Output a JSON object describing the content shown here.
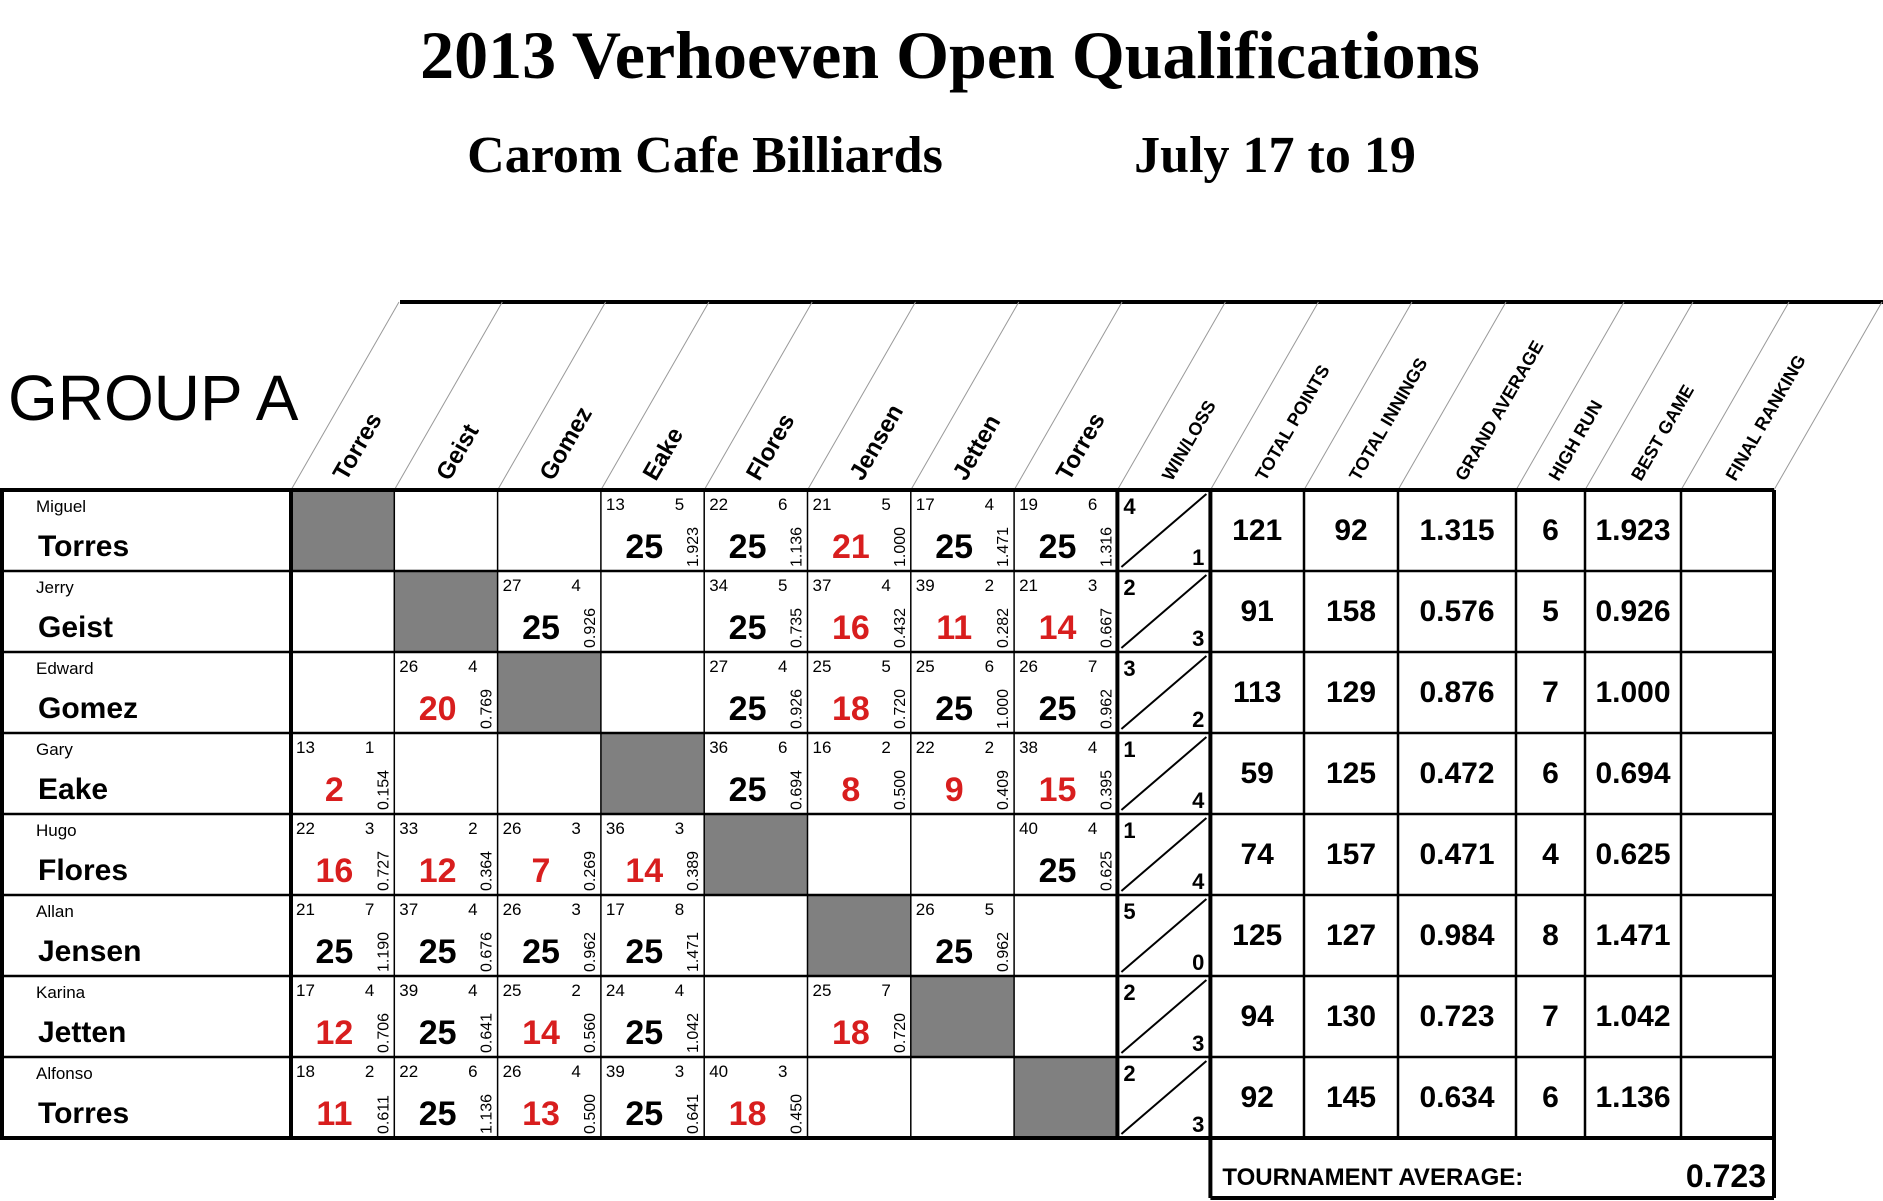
{
  "header": {
    "title": "2013 Verhoeven Open Qualifications",
    "venue": "Carom Cafe Billiards",
    "dates": "July 17 to 19"
  },
  "group": "GROUP A",
  "columns": {
    "opponents": [
      "Torres",
      "Geist",
      "Gomez",
      "Eake",
      "Flores",
      "Jensen",
      "Jetten",
      "Torres"
    ],
    "stats": [
      "WIN/LOSS",
      "TOTAL POINTS",
      "TOTAL INNINGS",
      "GRAND AVERAGE",
      "HIGH RUN",
      "BEST GAME",
      "FINAL RANKING"
    ]
  },
  "rows": [
    {
      "first": "Miguel",
      "last": "Torres",
      "cells": [
        null,
        null,
        null,
        {
          "innings": 13,
          "high_run": 5,
          "points": 25,
          "average": "1.923"
        },
        {
          "innings": 22,
          "high_run": 6,
          "points": 25,
          "average": "1.136"
        },
        {
          "innings": 21,
          "high_run": 5,
          "points": 21,
          "average": "1.000"
        },
        {
          "innings": 17,
          "high_run": 4,
          "points": 25,
          "average": "1.471"
        },
        {
          "innings": 19,
          "high_run": 6,
          "points": 25,
          "average": "1.316"
        }
      ],
      "win": 4,
      "loss": 1,
      "total_points": 121,
      "total_innings": 92,
      "grand_average": "1.315",
      "high_run": 6,
      "best_game": "1.923"
    },
    {
      "first": "Jerry",
      "last": "Geist",
      "cells": [
        null,
        null,
        {
          "innings": 27,
          "high_run": 4,
          "points": 25,
          "average": "0.926"
        },
        null,
        {
          "innings": 34,
          "high_run": 5,
          "points": 25,
          "average": "0.735"
        },
        {
          "innings": 37,
          "high_run": 4,
          "points": 16,
          "average": "0.432"
        },
        {
          "innings": 39,
          "high_run": 2,
          "points": 11,
          "average": "0.282"
        },
        {
          "innings": 21,
          "high_run": 3,
          "points": 14,
          "average": "0.667"
        }
      ],
      "win": 2,
      "loss": 3,
      "total_points": 91,
      "total_innings": 158,
      "grand_average": "0.576",
      "high_run": 5,
      "best_game": "0.926"
    },
    {
      "first": "Edward",
      "last": "Gomez",
      "cells": [
        null,
        {
          "innings": 26,
          "high_run": 4,
          "points": 20,
          "average": "0.769"
        },
        null,
        null,
        {
          "innings": 27,
          "high_run": 4,
          "points": 25,
          "average": "0.926"
        },
        {
          "innings": 25,
          "high_run": 5,
          "points": 18,
          "average": "0.720"
        },
        {
          "innings": 25,
          "high_run": 6,
          "points": 25,
          "average": "1.000"
        },
        {
          "innings": 26,
          "high_run": 7,
          "points": 25,
          "average": "0.962"
        }
      ],
      "win": 3,
      "loss": 2,
      "total_points": 113,
      "total_innings": 129,
      "grand_average": "0.876",
      "high_run": 7,
      "best_game": "1.000"
    },
    {
      "first": "Gary",
      "last": "Eake",
      "cells": [
        {
          "innings": 13,
          "high_run": 1,
          "points": 2,
          "average": "0.154"
        },
        null,
        null,
        null,
        {
          "innings": 36,
          "high_run": 6,
          "points": 25,
          "average": "0.694"
        },
        {
          "innings": 16,
          "high_run": 2,
          "points": 8,
          "average": "0.500"
        },
        {
          "innings": 22,
          "high_run": 2,
          "points": 9,
          "average": "0.409"
        },
        {
          "innings": 38,
          "high_run": 4,
          "points": 15,
          "average": "0.395"
        }
      ],
      "win": 1,
      "loss": 4,
      "total_points": 59,
      "total_innings": 125,
      "grand_average": "0.472",
      "high_run": 6,
      "best_game": "0.694"
    },
    {
      "first": "Hugo",
      "last": "Flores",
      "cells": [
        {
          "innings": 22,
          "high_run": 3,
          "points": 16,
          "average": "0.727"
        },
        {
          "innings": 33,
          "high_run": 2,
          "points": 12,
          "average": "0.364"
        },
        {
          "innings": 26,
          "high_run": 3,
          "points": 7,
          "average": "0.269"
        },
        {
          "innings": 36,
          "high_run": 3,
          "points": 14,
          "average": "0.389"
        },
        null,
        null,
        null,
        {
          "innings": 40,
          "high_run": 4,
          "points": 25,
          "average": "0.625"
        }
      ],
      "win": 1,
      "loss": 4,
      "total_points": 74,
      "total_innings": 157,
      "grand_average": "0.471",
      "high_run": 4,
      "best_game": "0.625"
    },
    {
      "first": "Allan",
      "last": "Jensen",
      "cells": [
        {
          "innings": 21,
          "high_run": 7,
          "points": 25,
          "average": "1.190"
        },
        {
          "innings": 37,
          "high_run": 4,
          "points": 25,
          "average": "0.676"
        },
        {
          "innings": 26,
          "high_run": 3,
          "points": 25,
          "average": "0.962"
        },
        {
          "innings": 17,
          "high_run": 8,
          "points": 25,
          "average": "1.471"
        },
        null,
        null,
        {
          "innings": 26,
          "high_run": 5,
          "points": 25,
          "average": "0.962"
        },
        null
      ],
      "win": 5,
      "loss": 0,
      "total_points": 125,
      "total_innings": 127,
      "grand_average": "0.984",
      "high_run": 8,
      "best_game": "1.471"
    },
    {
      "first": "Karina",
      "last": "Jetten",
      "cells": [
        {
          "innings": 17,
          "high_run": 4,
          "points": 12,
          "average": "0.706"
        },
        {
          "innings": 39,
          "high_run": 4,
          "points": 25,
          "average": "0.641"
        },
        {
          "innings": 25,
          "high_run": 2,
          "points": 14,
          "average": "0.560"
        },
        {
          "innings": 24,
          "high_run": 4,
          "points": 25,
          "average": "1.042"
        },
        null,
        {
          "innings": 25,
          "high_run": 7,
          "points": 18,
          "average": "0.720"
        },
        null,
        null
      ],
      "win": 2,
      "loss": 3,
      "total_points": 94,
      "total_innings": 130,
      "grand_average": "0.723",
      "high_run": 7,
      "best_game": "1.042"
    },
    {
      "first": "Alfonso",
      "last": "Torres",
      "cells": [
        {
          "innings": 18,
          "high_run": 2,
          "points": 11,
          "average": "0.611"
        },
        {
          "innings": 22,
          "high_run": 6,
          "points": 25,
          "average": "1.136"
        },
        {
          "innings": 26,
          "high_run": 4,
          "points": 13,
          "average": "0.500"
        },
        {
          "innings": 39,
          "high_run": 3,
          "points": 25,
          "average": "0.641"
        },
        {
          "innings": 40,
          "high_run": 3,
          "points": 18,
          "average": "0.450"
        },
        null,
        null,
        null
      ],
      "win": 2,
      "loss": 3,
      "total_points": 92,
      "total_innings": 145,
      "grand_average": "0.634",
      "high_run": 6,
      "best_game": "1.136"
    }
  ],
  "tournament_average": {
    "label": "TOURNAMENT AVERAGE:",
    "value": "0.723"
  }
}
